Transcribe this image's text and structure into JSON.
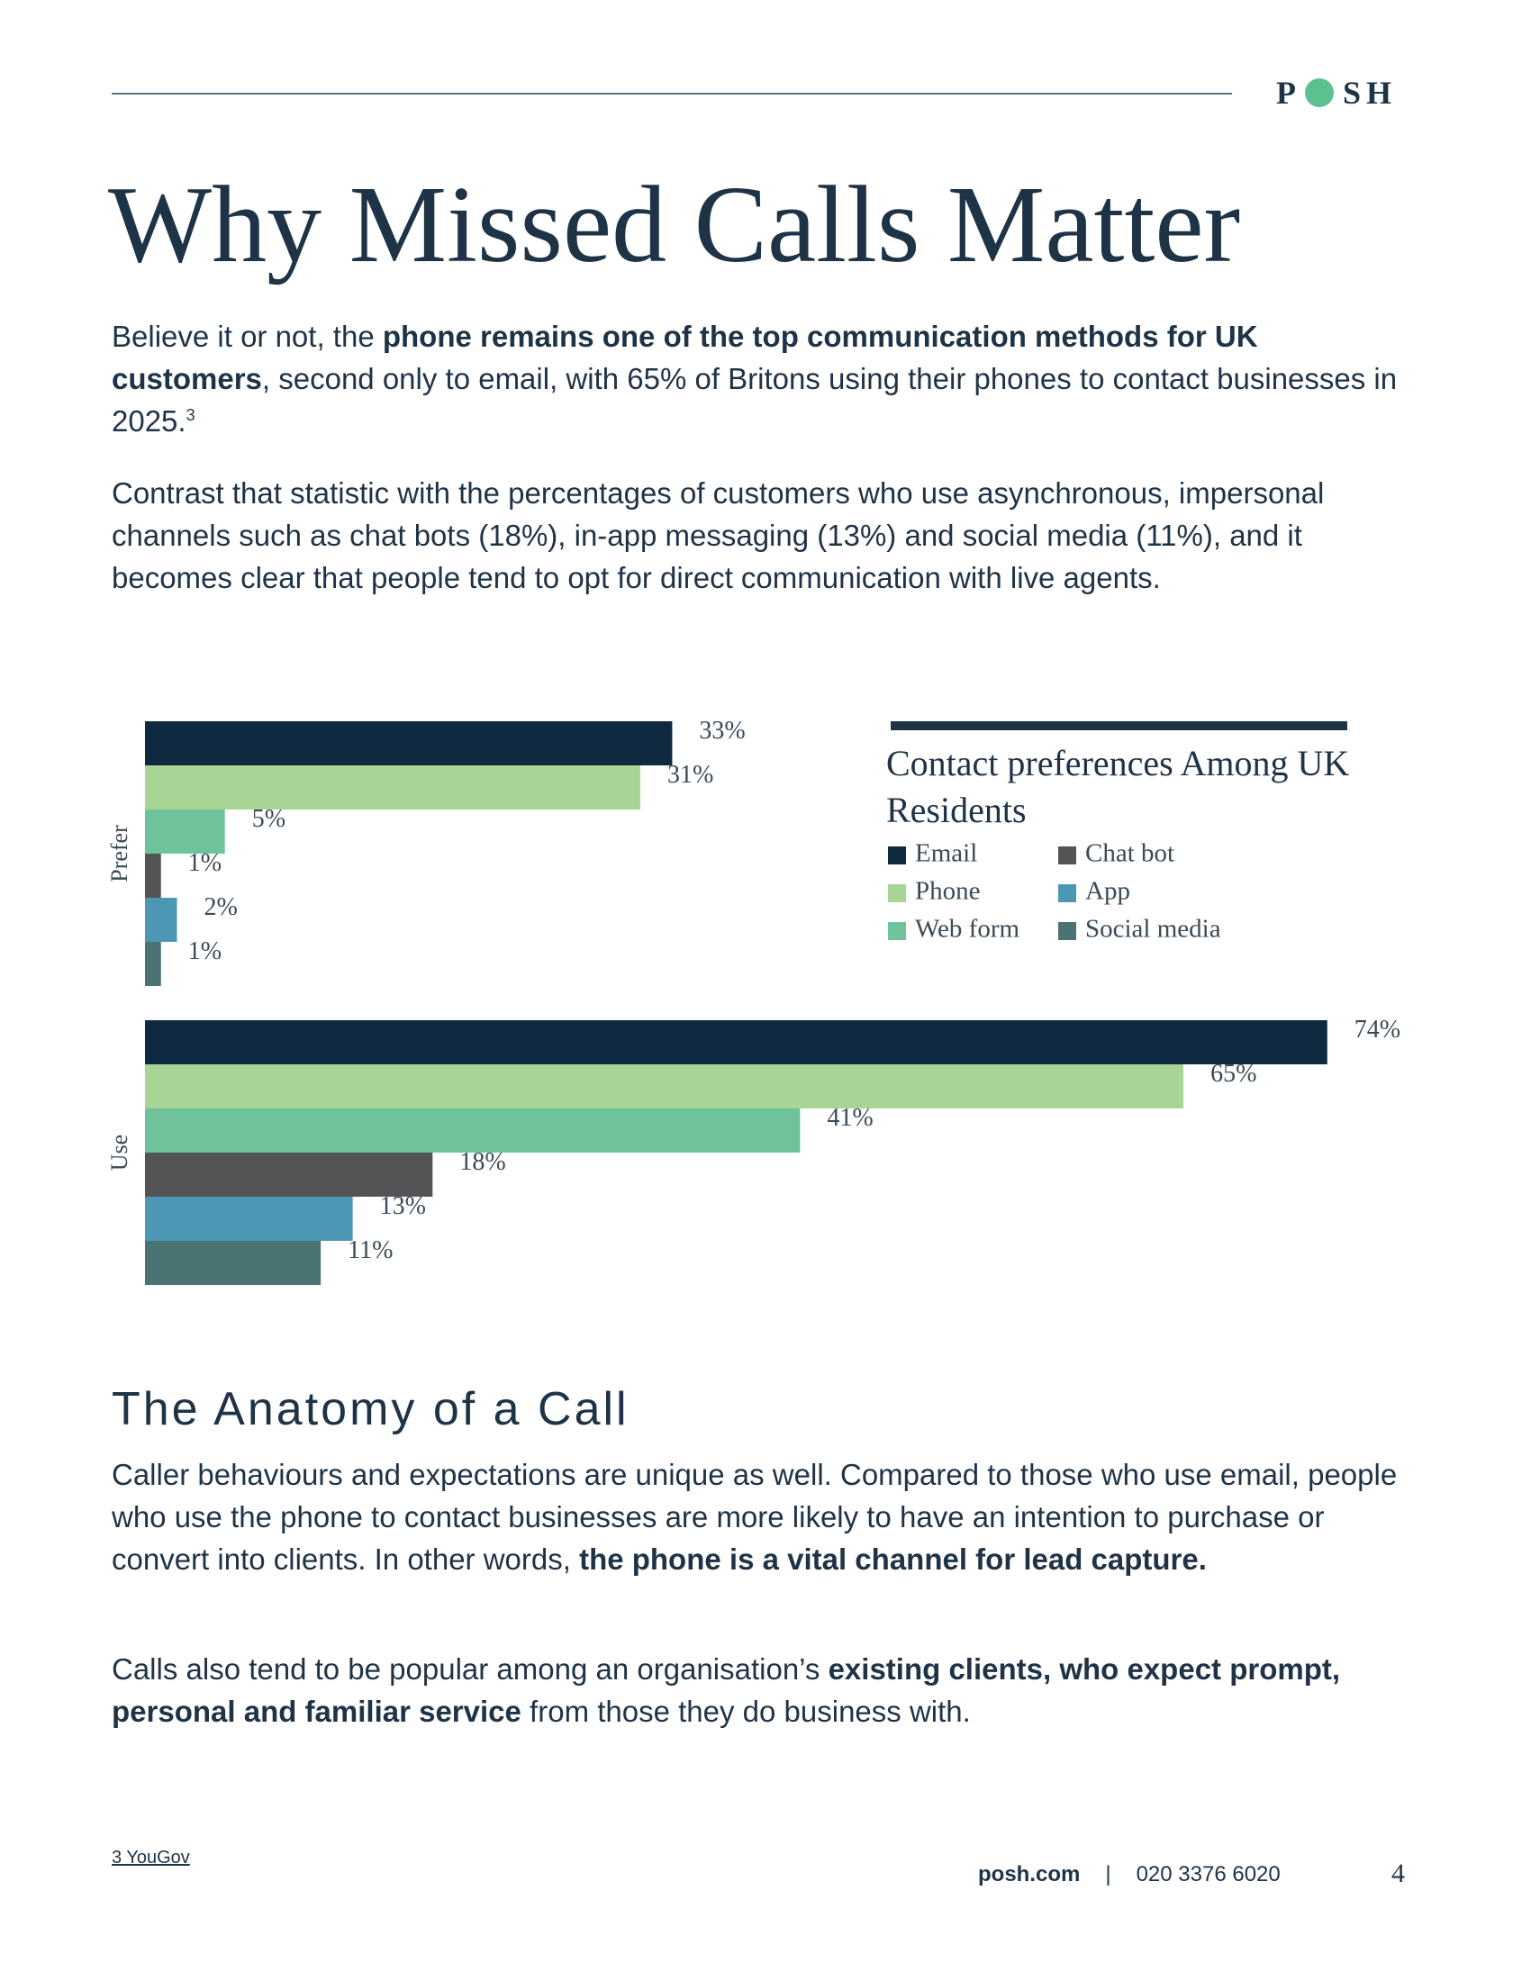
{
  "header": {
    "logo_left": "P",
    "logo_right": "SH"
  },
  "title": "Why Missed Calls Matter",
  "intro": [
    [
      {
        "text": "Believe it or not, the "
      },
      {
        "text": "phone remains one of the top communication methods for UK customers",
        "bold": true
      },
      {
        "text": ", second only to email, with 65% of Britons using their phones to contact businesses in 2025."
      },
      {
        "text": "3",
        "sup": true
      }
    ],
    [
      {
        "text": "Contrast that statistic with the percentages of customers who use asynchronous, impersonal channels such as chat bots (18%), in-app messaging (13%) and social media (11%), and it becomes clear that people tend to opt for direct communication with live agents."
      }
    ]
  ],
  "chart_data": {
    "type": "bar",
    "orientation": "horizontal",
    "legend_title": "Contact preferences Among UK Residents",
    "categories": [
      "Prefer",
      "Use"
    ],
    "series": [
      {
        "name": "Email",
        "color": "#0e2940",
        "values": [
          33,
          74
        ],
        "value_labels": [
          "33%",
          "74%"
        ]
      },
      {
        "name": "Phone",
        "color": "#a8d596",
        "values": [
          31,
          65
        ],
        "value_labels": [
          "31%",
          "65%"
        ]
      },
      {
        "name": "Web form",
        "color": "#6ec39a",
        "values": [
          5,
          41
        ],
        "value_labels": [
          "5%",
          "41%"
        ]
      },
      {
        "name": "Chat bot",
        "color": "#545456",
        "values": [
          1,
          18
        ],
        "value_labels": [
          "1%",
          "18%"
        ]
      },
      {
        "name": "App",
        "color": "#4b97b4",
        "values": [
          2,
          13
        ],
        "value_labels": [
          "2%",
          "13%"
        ]
      },
      {
        "name": "Social media",
        "color": "#4a7473",
        "values": [
          1,
          11
        ],
        "value_labels": [
          "1%",
          "11%"
        ]
      }
    ]
  },
  "section": {
    "heading": "The Anatomy of a Call",
    "paragraphs": [
      [
        {
          "text": "Caller behaviours and expectations are unique as well. Compared to those who use email, people who use the phone to contact businesses are more likely to have an intention to purchase or convert into clients. In other words, "
        },
        {
          "text": "the phone is a vital channel for lead capture.",
          "bold": true
        }
      ],
      [
        {
          "text": "Calls also tend to be popular among an organisation’s "
        },
        {
          "text": "existing clients, who expect prompt, personal and familiar service",
          "bold": true
        },
        {
          "text": " from those they do business with."
        }
      ]
    ]
  },
  "footer": {
    "footnote": "3 YouGov",
    "website": "posh.com",
    "separator": "|",
    "phone": "020 3376 6020",
    "page": "4"
  }
}
